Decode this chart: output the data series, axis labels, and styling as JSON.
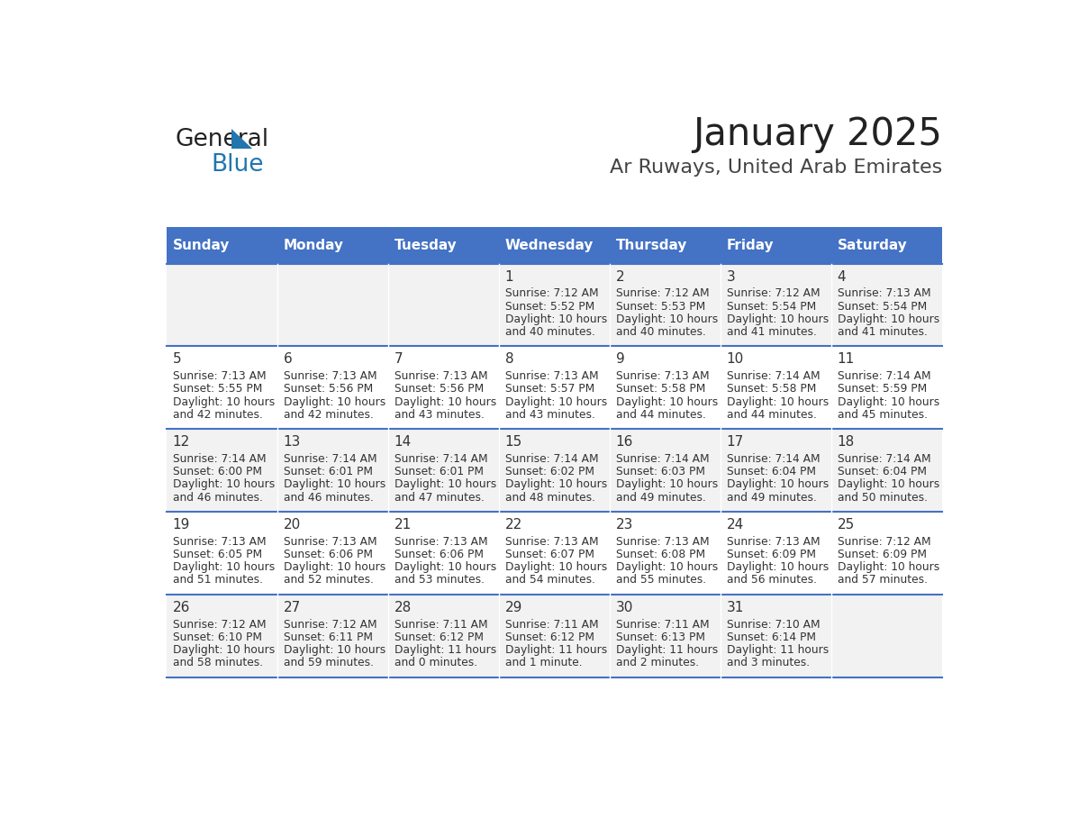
{
  "title": "January 2025",
  "subtitle": "Ar Ruways, United Arab Emirates",
  "days_of_week": [
    "Sunday",
    "Monday",
    "Tuesday",
    "Wednesday",
    "Thursday",
    "Friday",
    "Saturday"
  ],
  "header_bg": "#4472C4",
  "header_text": "#FFFFFF",
  "row_bg_even": "#F2F2F2",
  "row_bg_odd": "#FFFFFF",
  "border_color": "#4472C4",
  "title_color": "#222222",
  "subtitle_color": "#444444",
  "day_number_color": "#333333",
  "info_color": "#333333",
  "calendar_data": [
    [
      null,
      null,
      null,
      {
        "day": 1,
        "sunrise": "7:12 AM",
        "sunset": "5:52 PM",
        "daylight_line1": "Daylight: 10 hours",
        "daylight_line2": "and 40 minutes."
      },
      {
        "day": 2,
        "sunrise": "7:12 AM",
        "sunset": "5:53 PM",
        "daylight_line1": "Daylight: 10 hours",
        "daylight_line2": "and 40 minutes."
      },
      {
        "day": 3,
        "sunrise": "7:12 AM",
        "sunset": "5:54 PM",
        "daylight_line1": "Daylight: 10 hours",
        "daylight_line2": "and 41 minutes."
      },
      {
        "day": 4,
        "sunrise": "7:13 AM",
        "sunset": "5:54 PM",
        "daylight_line1": "Daylight: 10 hours",
        "daylight_line2": "and 41 minutes."
      }
    ],
    [
      {
        "day": 5,
        "sunrise": "7:13 AM",
        "sunset": "5:55 PM",
        "daylight_line1": "Daylight: 10 hours",
        "daylight_line2": "and 42 minutes."
      },
      {
        "day": 6,
        "sunrise": "7:13 AM",
        "sunset": "5:56 PM",
        "daylight_line1": "Daylight: 10 hours",
        "daylight_line2": "and 42 minutes."
      },
      {
        "day": 7,
        "sunrise": "7:13 AM",
        "sunset": "5:56 PM",
        "daylight_line1": "Daylight: 10 hours",
        "daylight_line2": "and 43 minutes."
      },
      {
        "day": 8,
        "sunrise": "7:13 AM",
        "sunset": "5:57 PM",
        "daylight_line1": "Daylight: 10 hours",
        "daylight_line2": "and 43 minutes."
      },
      {
        "day": 9,
        "sunrise": "7:13 AM",
        "sunset": "5:58 PM",
        "daylight_line1": "Daylight: 10 hours",
        "daylight_line2": "and 44 minutes."
      },
      {
        "day": 10,
        "sunrise": "7:14 AM",
        "sunset": "5:58 PM",
        "daylight_line1": "Daylight: 10 hours",
        "daylight_line2": "and 44 minutes."
      },
      {
        "day": 11,
        "sunrise": "7:14 AM",
        "sunset": "5:59 PM",
        "daylight_line1": "Daylight: 10 hours",
        "daylight_line2": "and 45 minutes."
      }
    ],
    [
      {
        "day": 12,
        "sunrise": "7:14 AM",
        "sunset": "6:00 PM",
        "daylight_line1": "Daylight: 10 hours",
        "daylight_line2": "and 46 minutes."
      },
      {
        "day": 13,
        "sunrise": "7:14 AM",
        "sunset": "6:01 PM",
        "daylight_line1": "Daylight: 10 hours",
        "daylight_line2": "and 46 minutes."
      },
      {
        "day": 14,
        "sunrise": "7:14 AM",
        "sunset": "6:01 PM",
        "daylight_line1": "Daylight: 10 hours",
        "daylight_line2": "and 47 minutes."
      },
      {
        "day": 15,
        "sunrise": "7:14 AM",
        "sunset": "6:02 PM",
        "daylight_line1": "Daylight: 10 hours",
        "daylight_line2": "and 48 minutes."
      },
      {
        "day": 16,
        "sunrise": "7:14 AM",
        "sunset": "6:03 PM",
        "daylight_line1": "Daylight: 10 hours",
        "daylight_line2": "and 49 minutes."
      },
      {
        "day": 17,
        "sunrise": "7:14 AM",
        "sunset": "6:04 PM",
        "daylight_line1": "Daylight: 10 hours",
        "daylight_line2": "and 49 minutes."
      },
      {
        "day": 18,
        "sunrise": "7:14 AM",
        "sunset": "6:04 PM",
        "daylight_line1": "Daylight: 10 hours",
        "daylight_line2": "and 50 minutes."
      }
    ],
    [
      {
        "day": 19,
        "sunrise": "7:13 AM",
        "sunset": "6:05 PM",
        "daylight_line1": "Daylight: 10 hours",
        "daylight_line2": "and 51 minutes."
      },
      {
        "day": 20,
        "sunrise": "7:13 AM",
        "sunset": "6:06 PM",
        "daylight_line1": "Daylight: 10 hours",
        "daylight_line2": "and 52 minutes."
      },
      {
        "day": 21,
        "sunrise": "7:13 AM",
        "sunset": "6:06 PM",
        "daylight_line1": "Daylight: 10 hours",
        "daylight_line2": "and 53 minutes."
      },
      {
        "day": 22,
        "sunrise": "7:13 AM",
        "sunset": "6:07 PM",
        "daylight_line1": "Daylight: 10 hours",
        "daylight_line2": "and 54 minutes."
      },
      {
        "day": 23,
        "sunrise": "7:13 AM",
        "sunset": "6:08 PM",
        "daylight_line1": "Daylight: 10 hours",
        "daylight_line2": "and 55 minutes."
      },
      {
        "day": 24,
        "sunrise": "7:13 AM",
        "sunset": "6:09 PM",
        "daylight_line1": "Daylight: 10 hours",
        "daylight_line2": "and 56 minutes."
      },
      {
        "day": 25,
        "sunrise": "7:12 AM",
        "sunset": "6:09 PM",
        "daylight_line1": "Daylight: 10 hours",
        "daylight_line2": "and 57 minutes."
      }
    ],
    [
      {
        "day": 26,
        "sunrise": "7:12 AM",
        "sunset": "6:10 PM",
        "daylight_line1": "Daylight: 10 hours",
        "daylight_line2": "and 58 minutes."
      },
      {
        "day": 27,
        "sunrise": "7:12 AM",
        "sunset": "6:11 PM",
        "daylight_line1": "Daylight: 10 hours",
        "daylight_line2": "and 59 minutes."
      },
      {
        "day": 28,
        "sunrise": "7:11 AM",
        "sunset": "6:12 PM",
        "daylight_line1": "Daylight: 11 hours",
        "daylight_line2": "and 0 minutes."
      },
      {
        "day": 29,
        "sunrise": "7:11 AM",
        "sunset": "6:12 PM",
        "daylight_line1": "Daylight: 11 hours",
        "daylight_line2": "and 1 minute."
      },
      {
        "day": 30,
        "sunrise": "7:11 AM",
        "sunset": "6:13 PM",
        "daylight_line1": "Daylight: 11 hours",
        "daylight_line2": "and 2 minutes."
      },
      {
        "day": 31,
        "sunrise": "7:10 AM",
        "sunset": "6:14 PM",
        "daylight_line1": "Daylight: 11 hours",
        "daylight_line2": "and 3 minutes."
      },
      null
    ]
  ]
}
